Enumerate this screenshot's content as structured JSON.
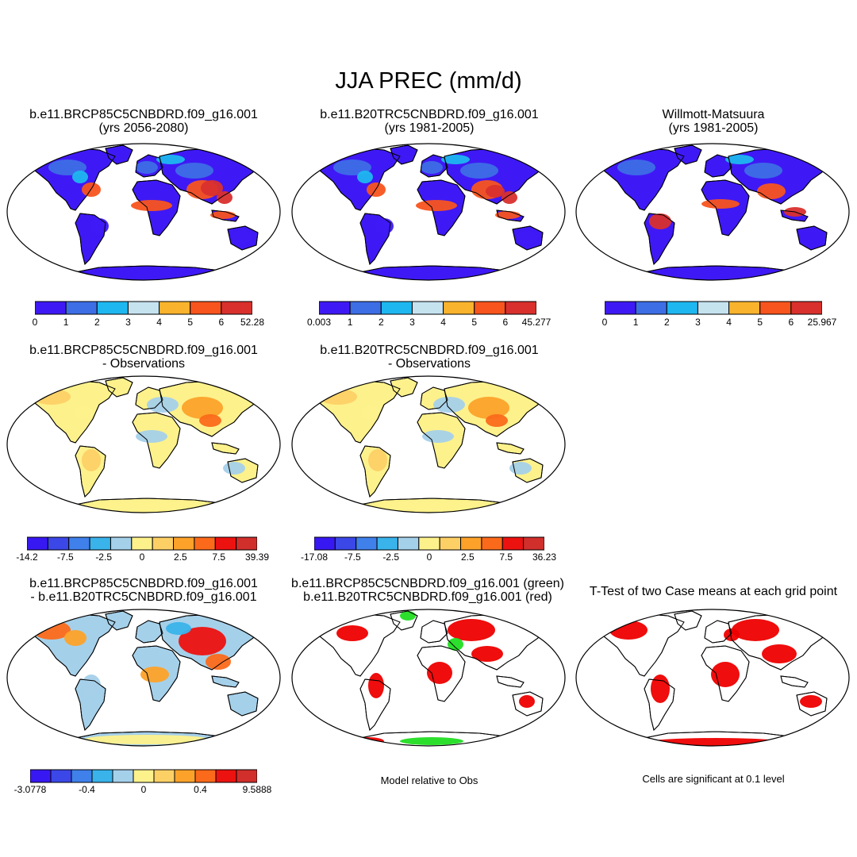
{
  "figure_title": "JJA PREC (mm/d)",
  "colors": {
    "abs": [
      "#3f19f5",
      "#3d6ee6",
      "#1eb7ef",
      "#c5e2ef",
      "#f9b32d",
      "#f8541d",
      "#d9302d"
    ],
    "diff": [
      "#3818f2",
      "#3b47e6",
      "#3f80ea",
      "#39b3ea",
      "#a5d0ea",
      "#fdf18c",
      "#fdd066",
      "#fca22a",
      "#fb6a1a",
      "#ec1210",
      "#d02f2c"
    ],
    "diff3": [
      "#3818f2",
      "#3b47e6",
      "#3f80ea",
      "#39b3ea",
      "#a5d0ea",
      "#fdf18c",
      "#fdd066",
      "#fca22a",
      "#fb6a1a",
      "#ec1210",
      "#d02f2c"
    ],
    "sig_red": "#ee0000",
    "sig_green": "#22dd22"
  },
  "panels": {
    "p1": {
      "line1": "b.e11.BRCP85C5CNBDRD.f09_g16.001",
      "line2": "(yrs 2056-2080)",
      "cbar_labels": [
        "0",
        "1",
        "2",
        "3",
        "4",
        "5",
        "6",
        "52.28"
      ]
    },
    "p2": {
      "line1": "b.e11.B20TRC5CNBDRD.f09_g16.001",
      "line2": "(yrs 1981-2005)",
      "cbar_labels": [
        "0.003",
        "1",
        "2",
        "3",
        "4",
        "5",
        "6",
        "45.277"
      ]
    },
    "p3": {
      "line1": "Willmott-Matsuura",
      "line2": "(yrs 1981-2005)",
      "cbar_labels": [
        "0",
        "1",
        "2",
        "3",
        "4",
        "5",
        "6",
        "25.967"
      ]
    },
    "p4": {
      "line1": "b.e11.BRCP85C5CNBDRD.f09_g16.001",
      "line2": "- Observations",
      "cbar_labels": [
        "-14.2",
        "-7.5",
        "-2.5",
        "0",
        "2.5",
        "7.5",
        "39.39"
      ]
    },
    "p5": {
      "line1": "b.e11.B20TRC5CNBDRD.f09_g16.001",
      "line2": "- Observations",
      "cbar_labels": [
        "-17.08",
        "-7.5",
        "-2.5",
        "0",
        "2.5",
        "7.5",
        "36.23"
      ]
    },
    "p6": {
      "line1": "b.e11.BRCP85C5CNBDRD.f09_g16.001",
      "line2": "- b.e11.B20TRC5CNBDRD.f09_g16.001",
      "cbar_labels": [
        "-3.0778",
        "-0.4",
        "0",
        "0.4",
        "9.5888"
      ]
    },
    "p7": {
      "line1": "b.e11.BRCP85C5CNBDRD.f09_g16.001 (green)",
      "line2": "b.e11.B20TRC5CNBDRD.f09_g16.001 (red)",
      "caption": "Model relative to Obs"
    },
    "p8": {
      "line1": "T-Test of two Case means at each grid point",
      "caption": "Cells are significant at 0.1 level"
    }
  }
}
